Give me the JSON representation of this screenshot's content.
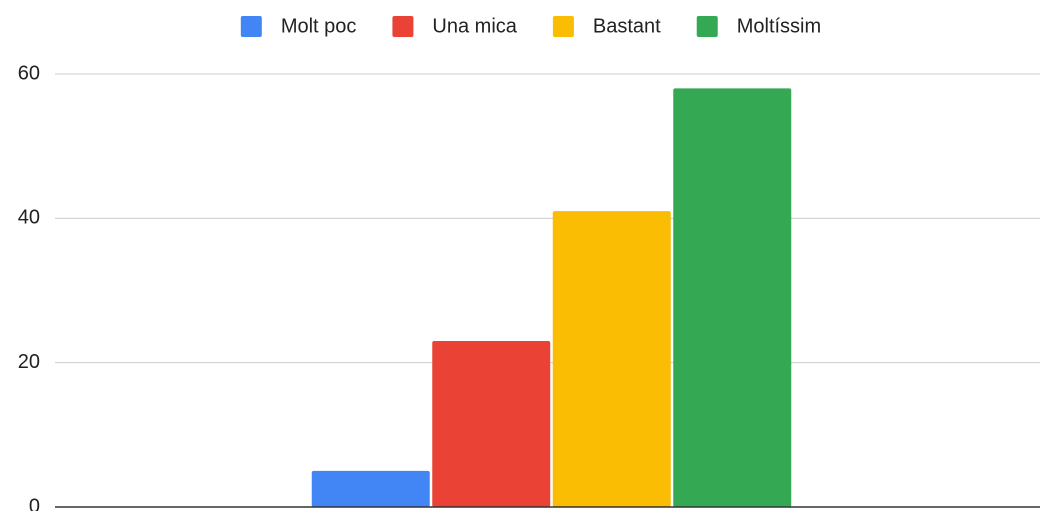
{
  "chart_data": {
    "type": "bar",
    "categories": [
      null
    ],
    "series": [
      {
        "name": "Molt poc",
        "color": "#4285f4",
        "values": [
          5
        ]
      },
      {
        "name": "Una mica",
        "color": "#ea4335",
        "values": [
          23
        ]
      },
      {
        "name": "Bastant",
        "color": "#fbbc04",
        "values": [
          41
        ]
      },
      {
        "name": "Moltíssim",
        "color": "#34a853",
        "values": [
          58
        ]
      }
    ],
    "ylim": [
      0,
      60
    ],
    "yticks": [
      0,
      20,
      40,
      60
    ],
    "grid": true,
    "legend": "top"
  }
}
